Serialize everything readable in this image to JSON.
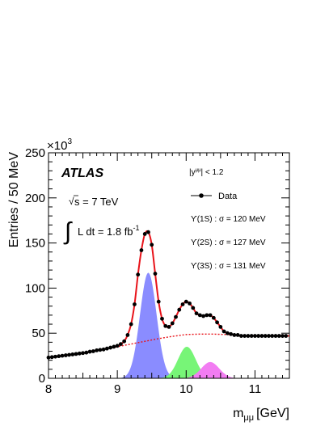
{
  "chart_data": {
    "type": "line",
    "xlabel": "m",
    "xlabel_sub": "μμ",
    "xlabel_unit": "[GeV]",
    "ylabel": "Entries / 50 MeV",
    "y_multiplier_base": "×10",
    "y_multiplier_exp": "3",
    "xlim": [
      8,
      11.5
    ],
    "ylim": [
      0,
      250
    ],
    "x_ticks": [
      8,
      9,
      10,
      11
    ],
    "x_tick_labels": [
      "8",
      "9",
      "10",
      "11"
    ],
    "y_ticks": [
      0,
      50,
      100,
      150,
      200,
      250
    ],
    "y_tick_labels": [
      "0",
      "50",
      "100",
      "150",
      "200",
      "250"
    ],
    "grid": false,
    "annotations": {
      "experiment": "ATLAS",
      "energy_text": "s = 7 TeV",
      "energy_sqrt": "√",
      "lumi_integral": "∫",
      "lumi_text": "L dt = 1.8 fb",
      "lumi_exp": "-1",
      "rapidity_prefix": "|y",
      "rapidity_sup": "μμ",
      "rapidity_suffix": "| < 1.2"
    },
    "legend": {
      "placement": "top-right",
      "data_label": "Data",
      "entries": [
        {
          "label": "ϒ(1S) : σ = 120 MeV"
        },
        {
          "label": "ϒ(2S) : σ = 127 MeV"
        },
        {
          "label": "ϒ(3S) : σ = 131 MeV"
        }
      ]
    },
    "colors": {
      "fit": "#e8131a",
      "background": "#e8131a",
      "data": "#000000",
      "upsilon_1s": "#8a8cff",
      "upsilon_2s": "#77f577",
      "upsilon_3s": "#f27cf2"
    },
    "peaks": [
      {
        "name": "ϒ(1S)",
        "mean": 9.45,
        "sigma": 0.12,
        "height": 117
      },
      {
        "name": "ϒ(2S)",
        "mean": 10.01,
        "sigma": 0.127,
        "height": 35
      },
      {
        "name": "ϒ(3S)",
        "mean": 10.35,
        "sigma": 0.131,
        "height": 18
      }
    ],
    "background_curve": {
      "x": [
        8.0,
        8.2,
        8.4,
        8.6,
        8.8,
        9.0,
        9.2,
        9.4,
        9.6,
        9.8,
        10.0,
        10.2,
        10.4,
        10.6,
        10.8,
        11.0,
        11.2,
        11.5
      ],
      "y": [
        23,
        25,
        27,
        29.5,
        32,
        35,
        38,
        41,
        44,
        46.5,
        48.5,
        49,
        49,
        48.5,
        48,
        47.5,
        47,
        47
      ]
    },
    "data_points": {
      "x": [
        8.0,
        8.05,
        8.1,
        8.15,
        8.2,
        8.25,
        8.3,
        8.35,
        8.4,
        8.45,
        8.5,
        8.55,
        8.6,
        8.65,
        8.7,
        8.75,
        8.8,
        8.85,
        8.9,
        8.95,
        9.0,
        9.05,
        9.1,
        9.15,
        9.2,
        9.25,
        9.3,
        9.35,
        9.4,
        9.45,
        9.5,
        9.55,
        9.6,
        9.65,
        9.7,
        9.75,
        9.8,
        9.85,
        9.9,
        9.95,
        10.0,
        10.05,
        10.1,
        10.15,
        10.2,
        10.25,
        10.3,
        10.35,
        10.4,
        10.45,
        10.5,
        10.55,
        10.6,
        10.65,
        10.7,
        10.75,
        10.8,
        10.85,
        10.9,
        10.95,
        11.0,
        11.05,
        11.1,
        11.15,
        11.2,
        11.25,
        11.3,
        11.35,
        11.4,
        11.45
      ],
      "y": [
        23,
        23.5,
        24,
        24.5,
        25,
        25.5,
        26,
        26.5,
        27,
        27.5,
        28,
        28.5,
        29.5,
        30,
        31,
        31.5,
        32,
        33,
        34,
        35,
        36,
        38,
        41,
        48,
        60,
        82,
        115,
        142,
        160,
        162,
        148,
        116,
        85,
        66,
        58,
        57,
        61,
        68,
        76,
        82,
        85,
        83,
        78,
        72,
        70,
        69,
        70,
        70,
        67,
        62,
        57,
        52,
        50,
        49,
        48,
        48,
        47,
        47,
        47,
        47,
        47,
        47,
        47,
        47,
        47,
        47,
        47,
        47,
        47,
        47
      ]
    }
  }
}
